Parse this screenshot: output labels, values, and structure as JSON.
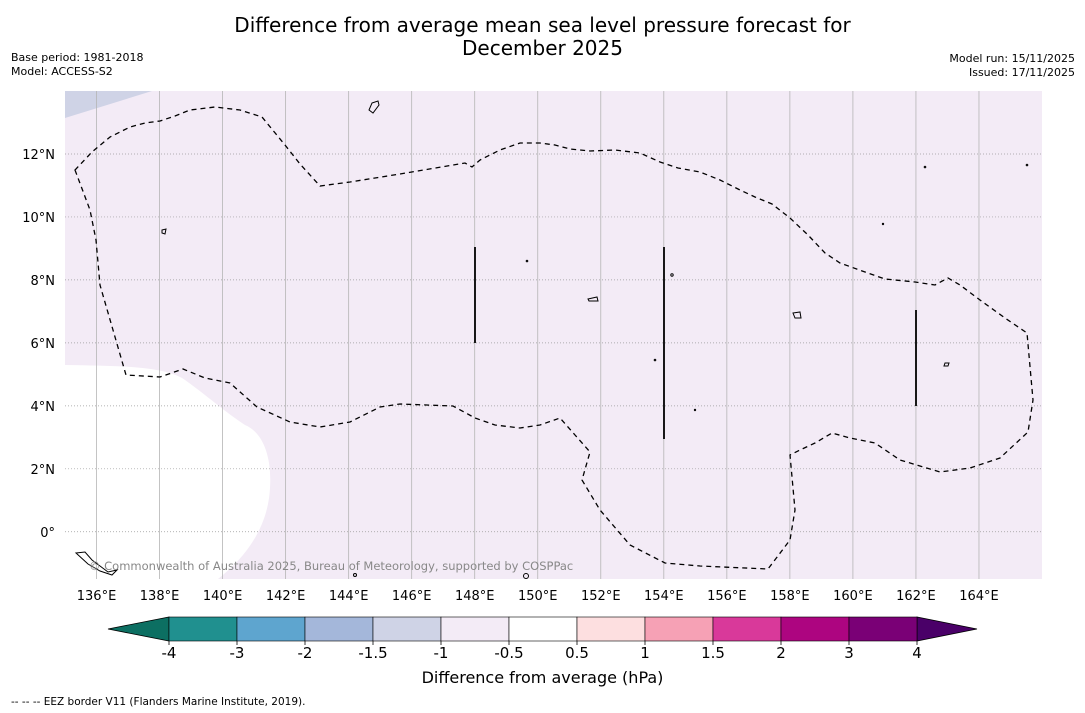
{
  "title_line1": "Difference from average mean sea level pressure forecast for",
  "title_line2": "December 2025",
  "base_period": "Base period: 1981-2018",
  "model": "Model: ACCESS-S2",
  "model_run": "Model run: 15/11/2025",
  "issued": "Issued: 17/11/2025",
  "copyright": "© Commonwealth of Australia 2025, Bureau of Meteorology, supported by COSPPac",
  "map": {
    "lon_range": [
      135,
      166
    ],
    "lat_range": [
      -1.5,
      14
    ],
    "lon_ticks": [
      "136°E",
      "138°E",
      "140°E",
      "142°E",
      "144°E",
      "146°E",
      "148°E",
      "150°E",
      "152°E",
      "154°E",
      "156°E",
      "158°E",
      "160°E",
      "162°E",
      "164°E"
    ],
    "lat_ticks": [
      "12°N",
      "10°N",
      "8°N",
      "6°N",
      "4°N",
      "2°N",
      "0°"
    ],
    "field_color": "#f3ebf6",
    "light_blue_color": "#cfd3e6",
    "eez_style": "dashed"
  },
  "colorbar": {
    "labels": [
      "-4",
      "-3",
      "-2",
      "-1.5",
      "-1",
      "-0.5",
      "0.5",
      "1",
      "1.5",
      "2",
      "3",
      "4"
    ],
    "colors": [
      "#20908f",
      "#5ea5cf",
      "#a4b7da",
      "#cfd3e6",
      "#f3ebf6",
      "#ffffff",
      "#fddfe0",
      "#f6a1b5",
      "#d9399a",
      "#ad0580",
      "#7a0076"
    ],
    "under_color": "#0c6f62",
    "over_color": "#4a0068",
    "label": "Difference from average (hPa)"
  },
  "footnote": "--  --  -- EEZ border V11 (Flanders Marine Institute, 2019)."
}
